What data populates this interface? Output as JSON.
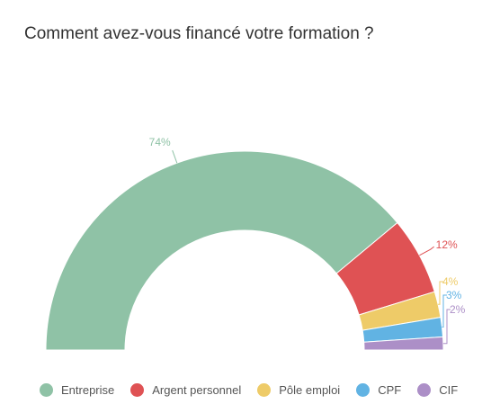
{
  "chart_data": {
    "type": "pie",
    "variant": "semi-donut",
    "title": "Comment avez-vous financé votre formation ?",
    "categories": [
      "Entreprise",
      "Argent personnel",
      "Pôle emploi",
      "CPF",
      "CIF"
    ],
    "values": [
      74,
      12,
      4,
      3,
      2
    ],
    "labels": [
      "74%",
      "12%",
      "4%",
      "3%",
      "2%"
    ],
    "colors": [
      "#8fc2a6",
      "#df5254",
      "#eecb68",
      "#61b3e3",
      "#ac8fc7"
    ],
    "legend_position": "bottom"
  }
}
